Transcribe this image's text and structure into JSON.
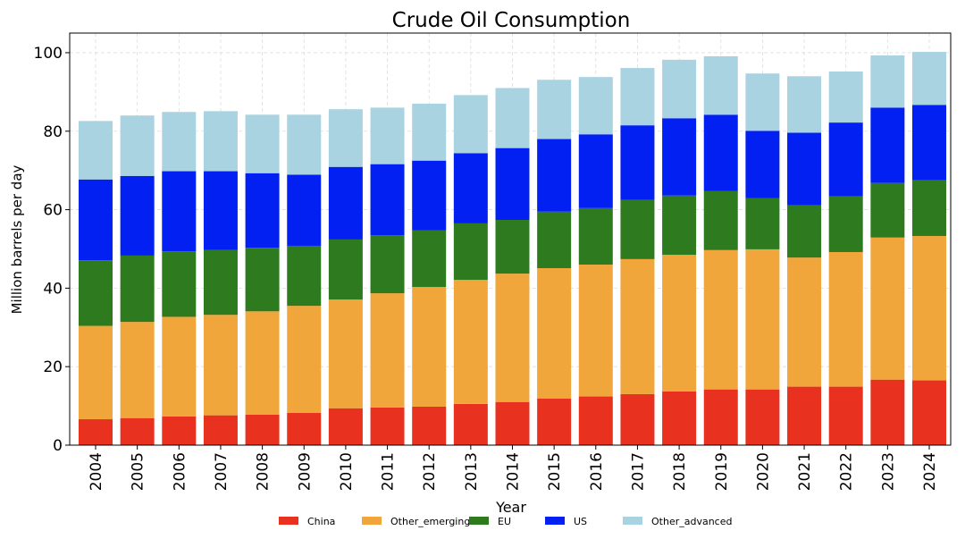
{
  "chart_data": {
    "type": "bar",
    "stacked": true,
    "title": "Crude Oil Consumption",
    "xlabel": "Year",
    "ylabel": "Million barrels per day",
    "ylim": [
      0,
      105
    ],
    "yticks": [
      0,
      20,
      40,
      60,
      80,
      100
    ],
    "grid": true,
    "legend_position": "bottom",
    "categories": [
      "2004",
      "2005",
      "2006",
      "2007",
      "2008",
      "2009",
      "2010",
      "2011",
      "2012",
      "2013",
      "2014",
      "2015",
      "2016",
      "2017",
      "2018",
      "2019",
      "2020",
      "2021",
      "2022",
      "2023",
      "2024"
    ],
    "series": [
      {
        "name": "China",
        "color": "#e8321f",
        "values": [
          6.6,
          6.9,
          7.3,
          7.6,
          7.8,
          8.2,
          9.4,
          9.6,
          9.8,
          10.5,
          11.0,
          11.9,
          12.4,
          13.0,
          13.7,
          14.2,
          14.2,
          14.9,
          14.9,
          16.7,
          16.5
        ]
      },
      {
        "name": "Other_emerging",
        "color": "#f0a63b",
        "values": [
          23.8,
          24.5,
          25.4,
          25.6,
          26.3,
          27.3,
          27.7,
          29.1,
          30.5,
          31.6,
          32.7,
          33.2,
          33.6,
          34.4,
          34.8,
          35.5,
          35.7,
          32.9,
          34.3,
          36.2,
          36.8
        ]
      },
      {
        "name": "EU",
        "color": "#2e7b1f",
        "values": [
          16.7,
          16.9,
          16.7,
          16.5,
          16.2,
          15.3,
          15.3,
          14.8,
          14.4,
          14.4,
          13.7,
          14.4,
          14.4,
          15.1,
          15.1,
          15.1,
          13.0,
          13.3,
          14.2,
          13.9,
          14.2
        ]
      },
      {
        "name": "US",
        "color": "#0320f2",
        "values": [
          20.6,
          20.3,
          20.4,
          20.1,
          19.0,
          18.1,
          18.5,
          18.1,
          17.8,
          17.9,
          18.3,
          18.5,
          18.8,
          19.0,
          19.7,
          19.4,
          17.2,
          18.5,
          18.8,
          19.2,
          19.2
        ]
      },
      {
        "name": "Other_advanced",
        "color": "#a9d3e1",
        "values": [
          14.9,
          15.4,
          15.1,
          15.3,
          14.9,
          15.3,
          14.7,
          14.4,
          14.5,
          14.8,
          15.3,
          15.1,
          14.6,
          14.6,
          14.9,
          14.9,
          14.6,
          14.4,
          13.0,
          13.3,
          13.5
        ]
      }
    ]
  }
}
